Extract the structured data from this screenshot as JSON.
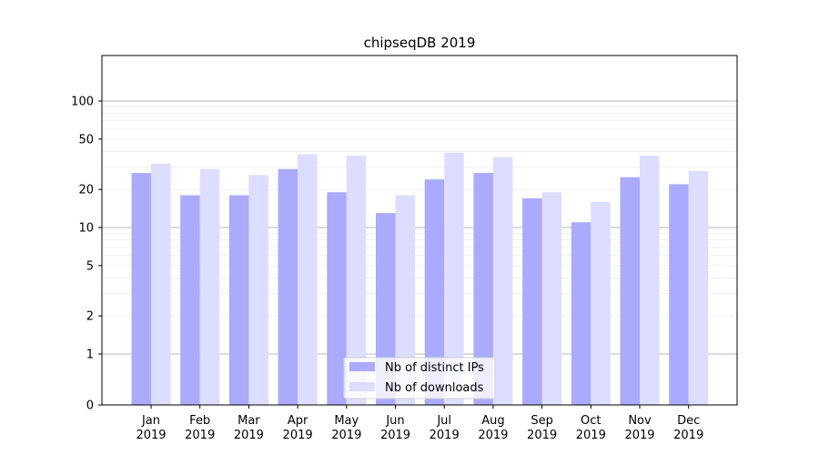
{
  "chart_data": {
    "type": "bar",
    "title": "chipseqDB 2019",
    "xlabel": "",
    "ylabel": "",
    "yscale": "symlog",
    "ylim": [
      0,
      110
    ],
    "grid": "horizontal",
    "legend_position": "bottom-center",
    "yticks": [
      {
        "value": 0,
        "label": "0"
      },
      {
        "value": 1,
        "label": "1"
      },
      {
        "value": 2,
        "label": "2"
      },
      {
        "value": 5,
        "label": "5"
      },
      {
        "value": 10,
        "label": "10"
      },
      {
        "value": 20,
        "label": "20"
      },
      {
        "value": 50,
        "label": "50"
      },
      {
        "value": 100,
        "label": "100"
      }
    ],
    "categories": [
      [
        "Jan",
        "2019"
      ],
      [
        "Feb",
        "2019"
      ],
      [
        "Mar",
        "2019"
      ],
      [
        "Apr",
        "2019"
      ],
      [
        "May",
        "2019"
      ],
      [
        "Jun",
        "2019"
      ],
      [
        "Jul",
        "2019"
      ],
      [
        "Aug",
        "2019"
      ],
      [
        "Sep",
        "2019"
      ],
      [
        "Oct",
        "2019"
      ],
      [
        "Nov",
        "2019"
      ],
      [
        "Dec",
        "2019"
      ]
    ],
    "series": [
      {
        "name": "Nb of distinct IPs",
        "color": "#aaaaff",
        "values": [
          27,
          18,
          18,
          29,
          19,
          13,
          24,
          27,
          17,
          11,
          25,
          22
        ]
      },
      {
        "name": "Nb of downloads",
        "color": "#ddddff",
        "values": [
          32,
          29,
          26,
          38,
          37,
          18,
          39,
          36,
          19,
          16,
          37,
          28
        ]
      }
    ]
  }
}
